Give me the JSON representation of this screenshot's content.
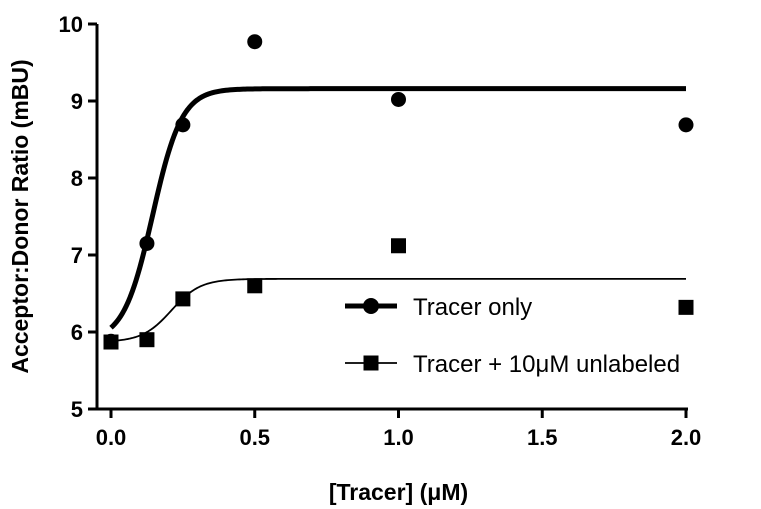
{
  "chart_data": {
    "type": "scatter",
    "title": "",
    "xlabel": "[Tracer] (μM)",
    "ylabel": "Acceptor:Donor Ratio (mBU)",
    "xlim": [
      0,
      2
    ],
    "ylim": [
      5,
      10
    ],
    "x_ticks": [
      0,
      0.5,
      1,
      1.5,
      2
    ],
    "x_tick_labels": [
      "0.0",
      "0.5",
      "1.0",
      "1.5",
      "2.0"
    ],
    "y_ticks": [
      5,
      6,
      7,
      8,
      9,
      10
    ],
    "y_tick_labels": [
      "5",
      "6",
      "7",
      "8",
      "9",
      "10"
    ],
    "grid": false,
    "legend_position": "lower-right",
    "series": [
      {
        "name": "Tracer only",
        "marker": "circle",
        "fit_line": "thick",
        "x": [
          0,
          0.125,
          0.25,
          0.5,
          1,
          2
        ],
        "y": [
          5.88,
          7.15,
          8.69,
          9.77,
          9.02,
          8.69
        ],
        "fit": {
          "bottom": 5.88,
          "top": 9.16,
          "x50": 0.145,
          "slope": 9
        }
      },
      {
        "name": "Tracer + 10μM unlabeled",
        "marker": "square",
        "fit_line": "thin",
        "x": [
          0,
          0.125,
          0.25,
          0.5,
          1,
          2
        ],
        "y": [
          5.87,
          5.9,
          6.43,
          6.6,
          7.12,
          6.32
        ],
        "fit": {
          "bottom": 5.87,
          "top": 6.69,
          "x50": 0.21,
          "slope": 9
        }
      }
    ]
  }
}
